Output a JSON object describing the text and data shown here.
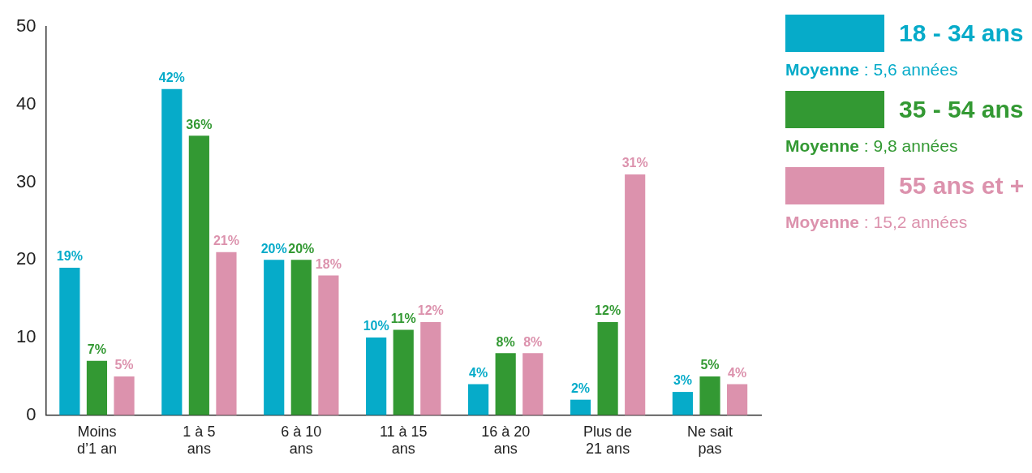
{
  "chart_data": {
    "type": "bar",
    "categories": [
      "Moins\nd’1 an",
      "1 à 5\nans",
      "6 à 10\nans",
      "11 à 15\nans",
      "16 à 20\nans",
      "Plus de\n21 ans",
      "Ne sait\npas"
    ],
    "series": [
      {
        "name": "18 - 34 ans",
        "color": "#06abc9",
        "values": [
          19,
          42,
          20,
          10,
          4,
          2,
          3
        ],
        "value_labels": [
          "19%",
          "42%",
          "20%",
          "10%",
          "4%",
          "2%",
          "3%"
        ]
      },
      {
        "name": "35 - 54 ans",
        "color": "#339933",
        "values": [
          7,
          36,
          20,
          11,
          8,
          12,
          5
        ],
        "value_labels": [
          "7%",
          "36%",
          "20%",
          "11%",
          "8%",
          "12%",
          "5%"
        ]
      },
      {
        "name": "55 ans et +",
        "color": "#dc92ad",
        "values": [
          5,
          21,
          18,
          12,
          8,
          31,
          4
        ],
        "value_labels": [
          "5%",
          "21%",
          "18%",
          "12%",
          "8%",
          "31%",
          "4%"
        ]
      }
    ],
    "annotations": [
      "Moyenne : 5,6 années",
      "Moyenne : 9,8 années",
      "Moyenne : 15,2 années"
    ],
    "ylim": [
      0,
      50
    ],
    "yticks": [
      0,
      10,
      20,
      30,
      40,
      50
    ],
    "grid": false,
    "legend": "right"
  }
}
